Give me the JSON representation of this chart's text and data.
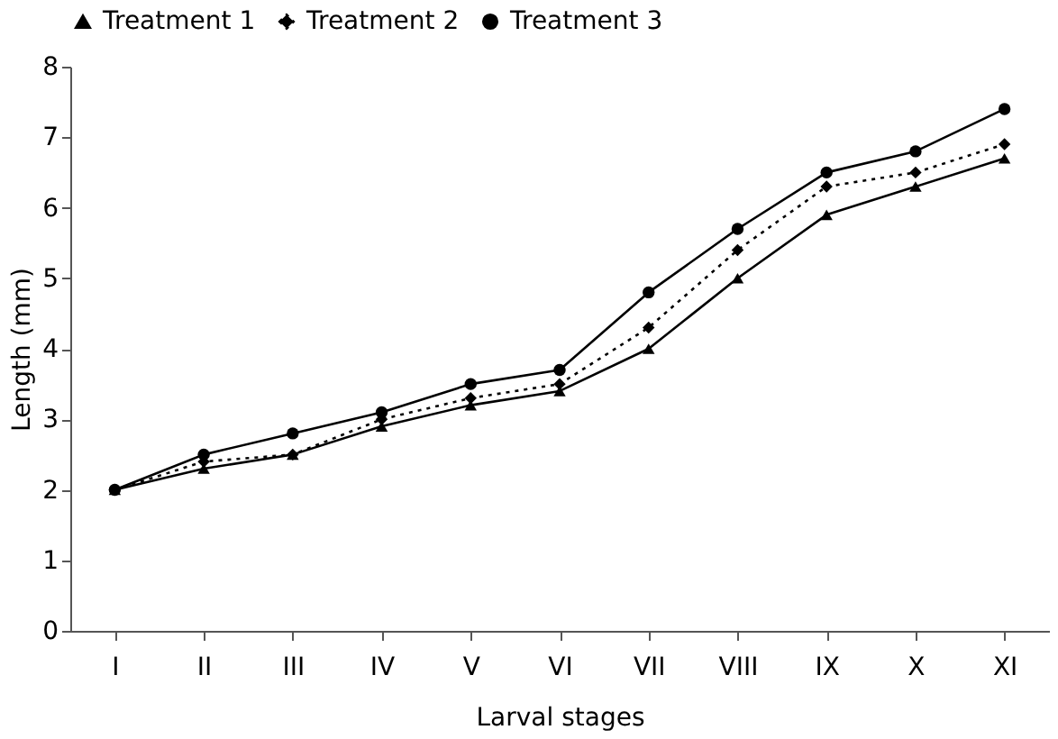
{
  "chart_data": {
    "type": "line",
    "xlabel": "Larval stages",
    "ylabel": "Length (mm)",
    "categories": [
      "I",
      "II",
      "III",
      "IV",
      "V",
      "VI",
      "VII",
      "VIII",
      "IX",
      "X",
      "XI"
    ],
    "series": [
      {
        "name": "Treatment 1",
        "color": "#000000",
        "marker": "triangle",
        "line_style": "solid",
        "values": [
          2.0,
          2.3,
          2.5,
          2.9,
          3.2,
          3.4,
          4.0,
          5.0,
          5.9,
          6.3,
          6.7
        ]
      },
      {
        "name": "Treatment 2",
        "color": "#000000",
        "marker": "diamond",
        "line_style": "dotted",
        "values": [
          2.0,
          2.4,
          2.5,
          3.0,
          3.3,
          3.5,
          4.3,
          5.4,
          6.3,
          6.5,
          6.9
        ]
      },
      {
        "name": "Treatment 3",
        "color": "#000000",
        "marker": "circle",
        "line_style": "solid",
        "values": [
          2.0,
          2.5,
          2.8,
          3.1,
          3.5,
          3.7,
          4.8,
          5.7,
          6.5,
          6.8,
          7.4
        ]
      }
    ],
    "ylim": [
      0,
      8
    ],
    "yticks": [
      0,
      1,
      2,
      3,
      4,
      5,
      6,
      7,
      8
    ],
    "grid": false,
    "legend": "top"
  }
}
